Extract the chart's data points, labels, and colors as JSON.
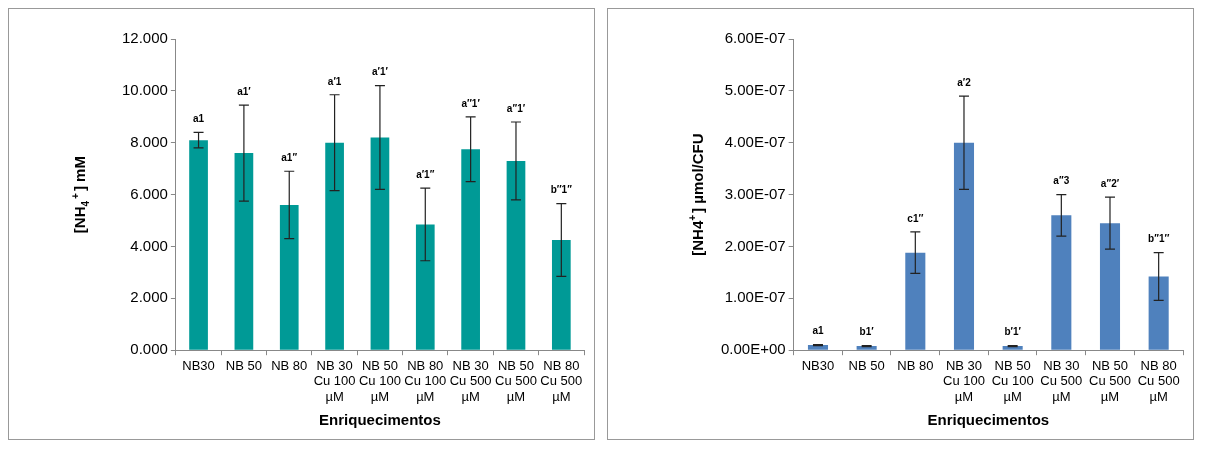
{
  "chart_data": [
    {
      "type": "bar",
      "ylabel": "[NH$_{4}$$^{+}$] mM",
      "xlabel": "Enriquecimentos",
      "categories": [
        "NB30",
        "NB 50",
        "NB 80",
        "NB 30 Cu 100 µM",
        "NB 50 Cu 100 µM",
        "NB 80 Cu 100 µM",
        "NB 30 Cu 500 µM",
        "NB 50 Cu 500 µM",
        "NB 80 Cu 500 µM"
      ],
      "values": [
        8.1,
        7.6,
        5.6,
        8.0,
        8.2,
        4.85,
        7.75,
        7.3,
        4.25
      ],
      "errors": [
        0.3,
        1.85,
        1.3,
        1.85,
        2.0,
        1.4,
        1.25,
        1.5,
        1.4
      ],
      "color": "#009a96",
      "ylim": [
        0,
        12
      ],
      "yticks": [
        {
          "value": 0,
          "label": "0.000"
        },
        {
          "value": 2,
          "label": "2.000"
        },
        {
          "value": 4,
          "label": "4.000"
        },
        {
          "value": 6,
          "label": "6.000"
        },
        {
          "value": 8,
          "label": "8.000"
        },
        {
          "value": 10,
          "label": "10.000"
        },
        {
          "value": 12,
          "label": "12.000"
        }
      ],
      "annotations": [
        {
          "text": "a1",
          "x": "NB30",
          "y": 8.4
        },
        {
          "text": "a1′",
          "x": "NB 50",
          "y": 9.45
        },
        {
          "text": "a1′′",
          "x": "NB 80",
          "y": 6.9
        },
        {
          "text": "a′1",
          "x": "NB 30 Cu 100 µM",
          "y": 9.85
        },
        {
          "text": "a′1′",
          "x": "NB 50 Cu 100 µM",
          "y": 10.2
        },
        {
          "text": "a′1′′",
          "x": "NB 80 Cu 100 µM",
          "y": 6.25
        },
        {
          "text": "a′′1′",
          "x": "NB 30 Cu 500 µM",
          "y": 9.0
        },
        {
          "text": "a′′1′",
          "x": "NB 50 Cu 500 µM",
          "y": 8.8
        },
        {
          "text": "b′′1′′",
          "x": "NB 80 Cu 500 µM",
          "y": 5.65
        }
      ],
      "grid": false
    },
    {
      "type": "bar",
      "ylabel": "[NH4$^{+}$] µmol/CFU",
      "xlabel": "Enriquecimentos",
      "categories": [
        "NB30",
        "NB 50",
        "NB 80",
        "NB 30 Cu 100 µM",
        "NB 50 Cu 100 µM",
        "NB 30 Cu 500 µM",
        "NB 50 Cu 500 µM",
        "NB 80 Cu 500 µM"
      ],
      "values": [
        1e-08,
        8e-09,
        1.88e-07,
        4e-07,
        8e-09,
        2.6e-07,
        2.45e-07,
        1.42e-07
      ],
      "errors": [
        1e-09,
        1e-09,
        4e-08,
        9e-08,
        1e-09,
        4e-08,
        5e-08,
        4.6e-08
      ],
      "color": "#4f81bd",
      "ylim": [
        0,
        6e-07
      ],
      "yticks": [
        {
          "value": 0,
          "label": "0.00E+00"
        },
        {
          "value": 1e-07,
          "label": "1.00E-07"
        },
        {
          "value": 2e-07,
          "label": "2.00E-07"
        },
        {
          "value": 3e-07,
          "label": "3.00E-07"
        },
        {
          "value": 4e-07,
          "label": "4.00E-07"
        },
        {
          "value": 5e-07,
          "label": "5.00E-07"
        },
        {
          "value": 6e-07,
          "label": "6.00E-07"
        }
      ],
      "annotations": [
        {
          "text": "a1",
          "x": "NB30",
          "y": 1.1e-08
        },
        {
          "text": "b1′",
          "x": "NB 50",
          "y": 9e-09
        },
        {
          "text": "c1′′",
          "x": "NB 80",
          "y": 2.28e-07
        },
        {
          "text": "a′2",
          "x": "NB 30 Cu 100 µM",
          "y": 4.9e-07
        },
        {
          "text": "b′1′",
          "x": "NB 50 Cu 100 µM",
          "y": 9e-09
        },
        {
          "text": "a′′3",
          "x": "NB 30 Cu 500 µM",
          "y": 3e-07
        },
        {
          "text": "a′′2′",
          "x": "NB 50 Cu 500 µM",
          "y": 2.95e-07
        },
        {
          "text": "b′′1′′",
          "x": "NB 80 Cu 500 µM",
          "y": 1.88e-07
        }
      ],
      "grid": false
    }
  ]
}
